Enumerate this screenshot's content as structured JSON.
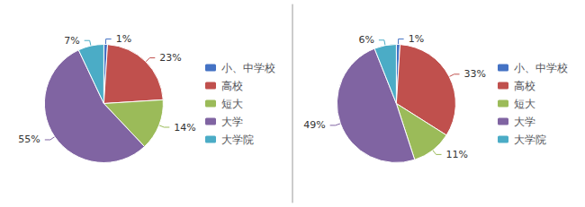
{
  "chart_data": [
    {
      "type": "pie",
      "categories": [
        "小、中学校",
        "高校",
        "短大",
        "大学",
        "大学院"
      ],
      "values": [
        1,
        23,
        14,
        55,
        7
      ],
      "value_labels": [
        "1%",
        "23%",
        "14%",
        "55%",
        "7%"
      ],
      "colors": [
        "#4472C4",
        "#C0504D",
        "#9BBB59",
        "#8064A2",
        "#4BACC6"
      ],
      "data_labels": true,
      "legend": "right"
    },
    {
      "type": "pie",
      "categories": [
        "小、中学校",
        "高校",
        "短大",
        "大学",
        "大学院"
      ],
      "values": [
        1,
        33,
        11,
        49,
        6
      ],
      "value_labels": [
        "1%",
        "33%",
        "11%",
        "49%",
        "6%"
      ],
      "colors": [
        "#4472C4",
        "#C0504D",
        "#9BBB59",
        "#8064A2",
        "#4BACC6"
      ],
      "data_labels": true,
      "legend": "right"
    }
  ]
}
